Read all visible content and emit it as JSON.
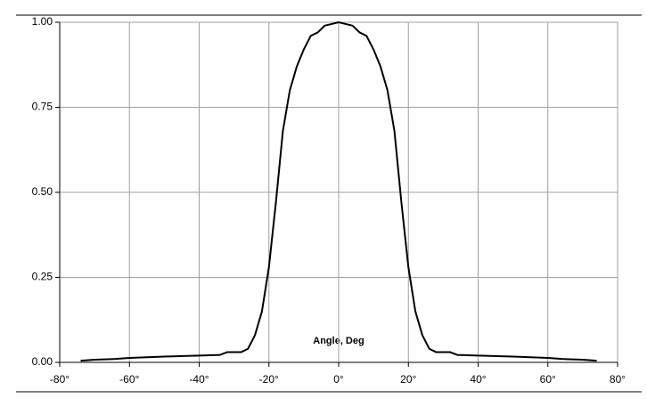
{
  "chart_data": {
    "type": "line",
    "x_label": "Angle, Deg",
    "x": [
      -74,
      -70,
      -64,
      -60,
      -50,
      -40,
      -34,
      -32,
      -28,
      -26,
      -24,
      -22,
      -20,
      -18,
      -16,
      -14,
      -12,
      -10,
      -8,
      -6,
      -4,
      -2,
      0,
      2,
      4,
      6,
      8,
      10,
      12,
      14,
      16,
      18,
      20,
      22,
      24,
      26,
      28,
      32,
      34,
      40,
      50,
      60,
      64,
      70,
      74
    ],
    "series": [
      {
        "color": "#000000",
        "values": [
          0.005,
          0.008,
          0.01,
          0.013,
          0.017,
          0.02,
          0.022,
          0.03,
          0.03,
          0.04,
          0.08,
          0.15,
          0.28,
          0.47,
          0.68,
          0.8,
          0.87,
          0.92,
          0.96,
          0.97,
          0.99,
          0.995,
          1.0,
          0.995,
          0.99,
          0.97,
          0.96,
          0.92,
          0.87,
          0.8,
          0.68,
          0.47,
          0.28,
          0.15,
          0.08,
          0.04,
          0.03,
          0.03,
          0.022,
          0.02,
          0.017,
          0.013,
          0.01,
          0.008,
          0.005
        ]
      }
    ],
    "xlim": [
      -80,
      80
    ],
    "xticks": [
      {
        "value": -80,
        "label": "-80°"
      },
      {
        "value": -60,
        "label": "-60°"
      },
      {
        "value": -40,
        "label": "-40°"
      },
      {
        "value": -20,
        "label": "-20°"
      },
      {
        "value": 0,
        "label": "0°"
      },
      {
        "value": 20,
        "label": "20°"
      },
      {
        "value": 40,
        "label": "40°"
      },
      {
        "value": 60,
        "label": "60°"
      },
      {
        "value": 80,
        "label": "80°"
      }
    ],
    "ylim": [
      0,
      1
    ],
    "yticks": [
      {
        "value": 0,
        "label": "0.00"
      },
      {
        "value": 0.25,
        "label": "0.25"
      },
      {
        "value": 0.5,
        "label": "0.50"
      },
      {
        "value": 0.75,
        "label": "0.75"
      },
      {
        "value": 1,
        "label": "1.00"
      }
    ],
    "grid": true
  }
}
